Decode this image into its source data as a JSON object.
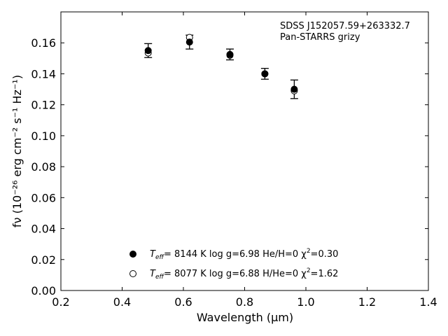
{
  "chart_data": {
    "type": "scatter",
    "title": "",
    "annotation_lines": [
      "SDSS J152057.59+263332.7",
      "Pan-STARRS grizy"
    ],
    "xlabel": "Wavelength (μm)",
    "ylabel": "fν (10⁻²⁶ erg cm⁻² s⁻¹ Hz⁻¹)",
    "xlim": [
      0.2,
      1.4
    ],
    "ylim": [
      0.0,
      0.18
    ],
    "x_ticks": [
      0.2,
      0.4,
      0.6,
      0.8,
      1.0,
      1.2,
      1.4
    ],
    "x_tick_labels": [
      "0.2",
      "0.4",
      "0.6",
      "0.8",
      "1.0",
      "1.2",
      "1.4"
    ],
    "y_ticks": [
      0.0,
      0.02,
      0.04,
      0.06,
      0.08,
      0.1,
      0.12,
      0.14,
      0.16
    ],
    "y_tick_labels": [
      "0.00",
      "0.02",
      "0.04",
      "0.06",
      "0.08",
      "0.10",
      "0.12",
      "0.14",
      "0.16"
    ],
    "grid": false,
    "legend_position": "bottom-center",
    "observed": {
      "x": [
        0.485,
        0.62,
        0.752,
        0.866,
        0.962
      ],
      "y": [
        0.155,
        0.1605,
        0.1525,
        0.14,
        0.13
      ],
      "yerr": [
        0.0045,
        0.0045,
        0.0035,
        0.0035,
        0.006
      ]
    },
    "series": [
      {
        "name": "Teff= 8144 K log g=6.98 He/H=0 χ2=0.30",
        "marker": "filled-circle",
        "x": [
          0.485,
          0.62,
          0.752,
          0.866,
          0.962
        ],
        "y": [
          0.155,
          0.1605,
          0.1525,
          0.14,
          0.13
        ]
      },
      {
        "name": "Teff= 8077 K log g=6.88 H/He=0 χ2=1.62",
        "marker": "open-circle",
        "x": [
          0.485,
          0.62,
          0.752,
          0.866,
          0.962
        ],
        "y": [
          0.1535,
          0.1635,
          0.152,
          0.14,
          0.129
        ]
      }
    ],
    "legend": [
      {
        "teff_label": "T",
        "teff_sub": "eff",
        "rest": "=  8144 K  log g=6.98  He/H=0  χ",
        "chi_sup": "2",
        "chi_val": "=0.30"
      },
      {
        "teff_label": "T",
        "teff_sub": "eff",
        "rest": "=  8077 K  log g=6.88  H/He=0  χ",
        "chi_sup": "2",
        "chi_val": "=1.62"
      }
    ]
  }
}
